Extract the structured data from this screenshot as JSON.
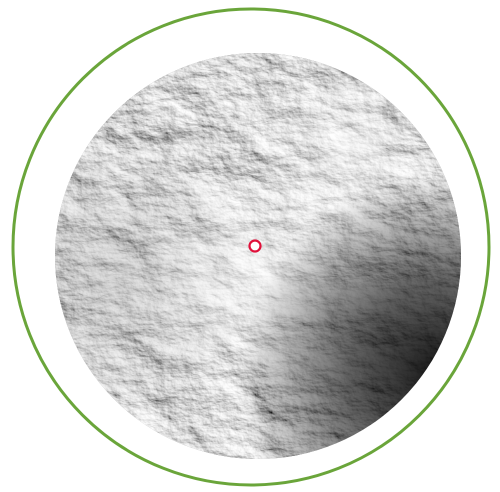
{
  "map": {
    "view": "circular-viewshed",
    "ring_color": "#6aa53a",
    "marker_color": "#e0103a",
    "marker_icon": "observer-point-icon",
    "terrain_palette": [
      "#1a1a1a",
      "#555555",
      "#8a8a8a",
      "#bdbdbd",
      "#f2f2f2"
    ],
    "background_color": "#ffffff"
  }
}
